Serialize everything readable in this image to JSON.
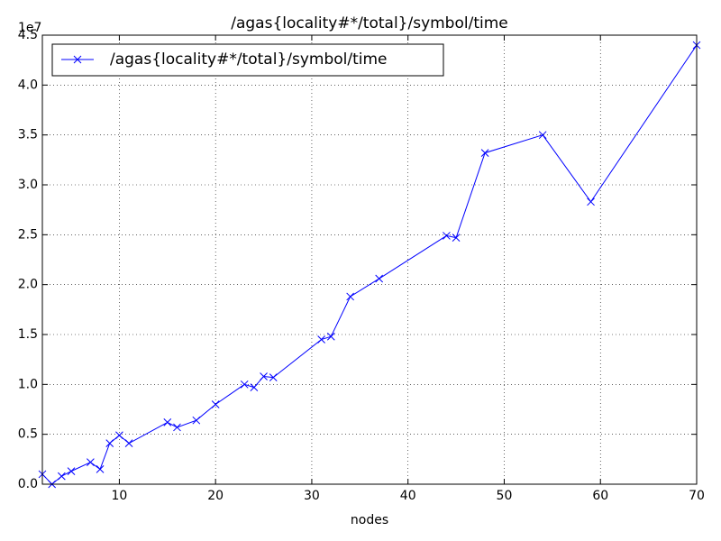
{
  "chart_data": {
    "type": "line",
    "title": "/agas{locality#*/total}/symbol/time",
    "x_label": "nodes",
    "offset_label": "1e7",
    "x": [
      2,
      3,
      4,
      5,
      7,
      8,
      9,
      10,
      11,
      15,
      16,
      18,
      20,
      23,
      24,
      25,
      26,
      31,
      32,
      34,
      37,
      44,
      45,
      48,
      54,
      59,
      70
    ],
    "series": [
      {
        "name": "/agas{locality#*/total}/symbol/time",
        "color": "#0000ff",
        "values": [
          1000000,
          0,
          800000,
          1300000,
          2200000,
          1500000,
          4100000,
          4900000,
          4100000,
          6200000,
          5700000,
          6400000,
          8000000,
          10000000,
          9700000,
          10800000,
          10700000,
          14500000,
          14800000,
          18800000,
          20600000,
          24900000,
          24700000,
          33200000,
          35000000,
          28300000,
          44000000
        ]
      }
    ],
    "xlim": [
      2,
      70
    ],
    "xticks": [
      10,
      20,
      30,
      40,
      50,
      60,
      70
    ],
    "ylim": [
      0,
      45000000
    ],
    "yticks": [
      {
        "value": 0,
        "label": "0.0"
      },
      {
        "value": 5000000,
        "label": "0.5"
      },
      {
        "value": 10000000,
        "label": "1.0"
      },
      {
        "value": 15000000,
        "label": "1.5"
      },
      {
        "value": 20000000,
        "label": "2.0"
      },
      {
        "value": 25000000,
        "label": "2.5"
      },
      {
        "value": 30000000,
        "label": "3.0"
      },
      {
        "value": 35000000,
        "label": "3.5"
      },
      {
        "value": 40000000,
        "label": "4.0"
      },
      {
        "value": 45000000,
        "label": "4.5"
      }
    ],
    "grid": true,
    "legend": "upper-left"
  }
}
